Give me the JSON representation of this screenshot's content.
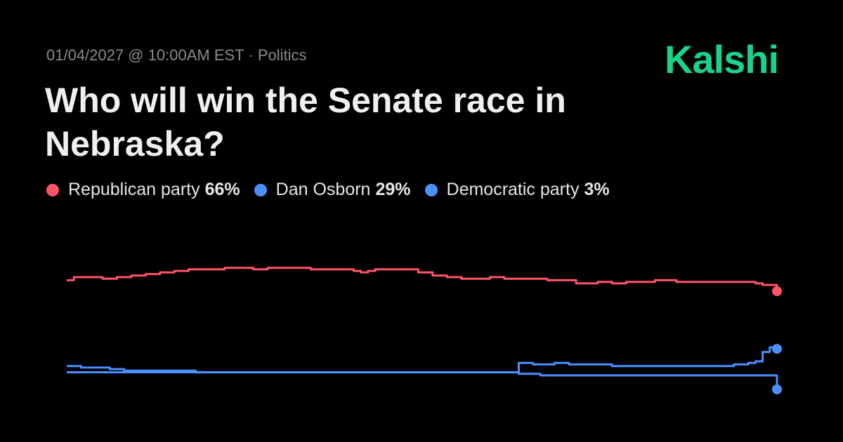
{
  "header": {
    "date": "01/04/2027 @ 10:00AM EST",
    "separator": "·",
    "category": "Politics",
    "logo": "Kalshi",
    "title": "Who will win the Senate race in Nebraska?"
  },
  "colors": {
    "background": "#000000",
    "logo": "#1ad38a"
  },
  "chart_data": {
    "type": "line",
    "title": "Who will win the Senate race in Nebraska?",
    "xlabel": "",
    "ylabel": "",
    "ylim": [
      0,
      100
    ],
    "grid": false,
    "legend_position": "top-left",
    "series": [
      {
        "name": "Republican party",
        "value_label": "66%",
        "color": "#ff5468",
        "values": [
          73,
          75,
          75,
          75,
          75,
          74,
          74,
          75,
          75,
          76,
          76,
          77,
          77,
          78,
          78,
          79,
          79,
          80,
          80,
          80,
          80,
          80,
          81,
          81,
          81,
          81,
          80,
          80,
          81,
          81,
          81,
          81,
          81,
          81,
          80,
          80,
          80,
          80,
          80,
          80,
          79,
          78,
          79,
          80,
          80,
          80,
          80,
          80,
          80,
          78,
          78,
          76,
          76,
          75,
          75,
          74,
          74,
          74,
          74,
          75,
          75,
          74,
          74,
          74,
          74,
          74,
          74,
          73,
          73,
          73,
          73,
          71,
          71,
          71,
          72,
          72,
          71,
          71,
          72,
          72,
          72,
          72,
          73,
          73,
          73,
          72,
          72,
          72,
          72,
          72,
          72,
          72,
          72,
          72,
          72,
          72,
          71,
          70,
          70,
          66
        ]
      },
      {
        "name": "Dan Osborn",
        "value_label": "29%",
        "color": "#4b90ff",
        "values": [
          18,
          18,
          17,
          17,
          17,
          17,
          16,
          16,
          15,
          15,
          15,
          15,
          15,
          15,
          15,
          15,
          15,
          15,
          14,
          14,
          14,
          14,
          14,
          14,
          14,
          14,
          14,
          14,
          14,
          14,
          14,
          14,
          14,
          14,
          14,
          14,
          14,
          14,
          14,
          14,
          14,
          14,
          14,
          14,
          14,
          14,
          14,
          14,
          14,
          14,
          14,
          14,
          14,
          14,
          14,
          14,
          14,
          14,
          14,
          14,
          14,
          14,
          14,
          20,
          20,
          19,
          19,
          19,
          20,
          20,
          19,
          19,
          19,
          19,
          19,
          19,
          18,
          18,
          18,
          18,
          18,
          18,
          18,
          18,
          18,
          18,
          18,
          18,
          18,
          18,
          18,
          18,
          18,
          19,
          19,
          20,
          21,
          27,
          30,
          29
        ]
      },
      {
        "name": "Democratic party",
        "value_label": "3%",
        "color": "#4b90ff",
        "values": [
          14,
          14,
          14,
          14,
          14,
          14,
          14,
          14,
          14,
          14,
          14,
          14,
          14,
          14,
          14,
          14,
          14,
          14,
          14,
          14,
          14,
          14,
          14,
          14,
          14,
          14,
          14,
          14,
          14,
          14,
          14,
          14,
          14,
          14,
          14,
          14,
          14,
          14,
          14,
          14,
          14,
          14,
          14,
          14,
          14,
          14,
          14,
          14,
          14,
          14,
          14,
          14,
          14,
          14,
          14,
          14,
          14,
          14,
          14,
          14,
          14,
          14,
          14,
          13,
          13,
          13,
          12,
          12,
          12,
          12,
          12,
          12,
          12,
          12,
          12,
          12,
          12,
          12,
          12,
          12,
          12,
          12,
          12,
          12,
          12,
          12,
          12,
          12,
          12,
          12,
          12,
          12,
          12,
          12,
          12,
          12,
          12,
          12,
          12,
          3
        ]
      }
    ]
  }
}
